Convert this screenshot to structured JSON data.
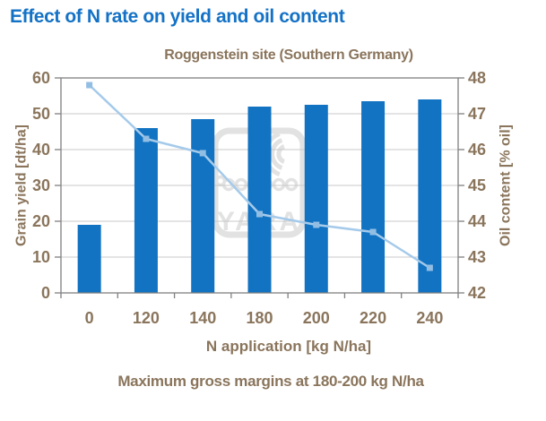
{
  "header": {
    "title": "Effect of N rate on yield and oil content"
  },
  "chart_data": {
    "type": "bar",
    "title": "Roggenstein site (Southern Germany)",
    "categories": [
      "0",
      "120",
      "140",
      "180",
      "200",
      "220",
      "240"
    ],
    "series": [
      {
        "name": "Grain yield",
        "type": "bar",
        "axis": "left",
        "values": [
          19,
          46,
          48.5,
          52,
          52.5,
          53.5,
          54
        ]
      },
      {
        "name": "Oil content",
        "type": "line",
        "axis": "right",
        "values": [
          47.8,
          46.3,
          45.9,
          44.2,
          43.9,
          43.7,
          42.7
        ]
      }
    ],
    "xlabel": "N application [kg N/ha]",
    "ylabel_left": "Grain yield [dt/ha]",
    "ylabel_right": "Oil content [% oil]",
    "ylim_left": [
      0,
      60
    ],
    "ytick_step_left": 10,
    "ylim_right": [
      42,
      48
    ],
    "ytick_step_right": 1,
    "grid": true,
    "legend_position": "none"
  },
  "footnote": {
    "text": "Maximum gross margins at 180-200 kg N/ha"
  },
  "watermark": {
    "text": "YARA"
  },
  "colors": {
    "title": "#1472C6",
    "bar": "#1173C2",
    "line": "#A5CAEA",
    "marker": "#93BEE4",
    "axis_text": "#8A755C",
    "axis_line": "#808080",
    "gridline": "#C8C8C8",
    "watermark": "#E2E2E2",
    "background": "#FFFFFF"
  }
}
